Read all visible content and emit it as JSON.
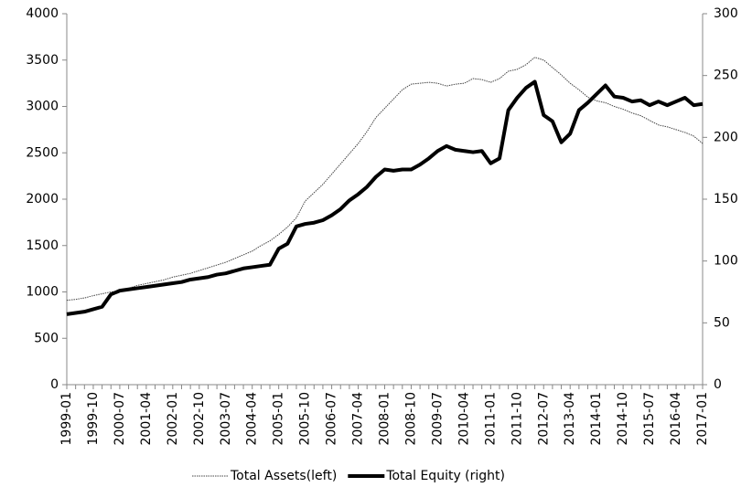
{
  "chart_data": {
    "type": "line",
    "categories": [
      "1999-01",
      null,
      null,
      "1999-10",
      null,
      null,
      "2000-07",
      null,
      null,
      "2001-04",
      null,
      null,
      "2002-01",
      null,
      null,
      "2002-10",
      null,
      null,
      "2003-07",
      null,
      null,
      "2004-04",
      null,
      null,
      "2005-01",
      null,
      null,
      "2005-10",
      null,
      null,
      "2006-07",
      null,
      null,
      "2007-04",
      null,
      null,
      "2008-01",
      null,
      null,
      "2008-10",
      null,
      null,
      "2009-07",
      null,
      null,
      "2010-04",
      null,
      null,
      "2011-01",
      null,
      null,
      "2011-10",
      null,
      null,
      "2012-07",
      null,
      null,
      "2013-04",
      null,
      null,
      "2014-01",
      null,
      null,
      "2014-10",
      null,
      null,
      "2015-07",
      null,
      null,
      "2016-04",
      null,
      null,
      "2017-01"
    ],
    "series": [
      {
        "name": "Total Assets(left)",
        "color": "#444444",
        "line_width": 1,
        "dashed": true,
        "axis": "y",
        "values": [
          910,
          920,
          935,
          960,
          980,
          1000,
          1010,
          1040,
          1070,
          1090,
          1110,
          1130,
          1160,
          1180,
          1200,
          1230,
          1260,
          1290,
          1320,
          1360,
          1400,
          1440,
          1500,
          1550,
          1620,
          1700,
          1800,
          1980,
          2070,
          2160,
          2270,
          2380,
          2490,
          2600,
          2730,
          2880,
          2980,
          3080,
          3180,
          3240,
          3250,
          3260,
          3250,
          3220,
          3240,
          3250,
          3300,
          3290,
          3260,
          3300,
          3380,
          3400,
          3450,
          3530,
          3500,
          3420,
          3340,
          3250,
          3180,
          3100,
          3060,
          3040,
          3000,
          2970,
          2930,
          2900,
          2850,
          2800,
          2780,
          2750,
          2720,
          2680,
          2600
        ]
      },
      {
        "name": "Total Equity (right)",
        "color": "#000000",
        "line_width": 4,
        "dashed": false,
        "axis": "y2",
        "values": [
          57,
          58,
          59,
          61,
          63,
          73,
          76,
          77,
          78,
          79,
          80,
          81,
          82,
          83,
          85,
          86,
          87,
          89,
          90,
          92,
          94,
          95,
          96,
          97,
          110,
          114,
          128,
          130,
          131,
          133,
          137,
          142,
          149,
          154,
          160,
          168,
          174,
          173,
          174,
          174,
          178,
          183,
          189,
          193,
          190,
          189,
          188,
          189,
          179,
          183,
          222,
          232,
          240,
          245,
          218,
          213,
          196,
          203,
          222,
          228,
          235,
          242,
          233,
          232,
          229,
          230,
          226,
          229,
          226,
          229,
          232,
          226,
          227
        ]
      }
    ],
    "ylim": [
      0,
      4000
    ],
    "yticks": [
      0,
      500,
      1000,
      1500,
      2000,
      2500,
      3000,
      3500,
      4000
    ],
    "y2lim": [
      0,
      300
    ],
    "y2ticks": [
      0,
      50,
      100,
      150,
      200,
      250,
      300
    ],
    "grid": false,
    "legend": "bottom"
  }
}
